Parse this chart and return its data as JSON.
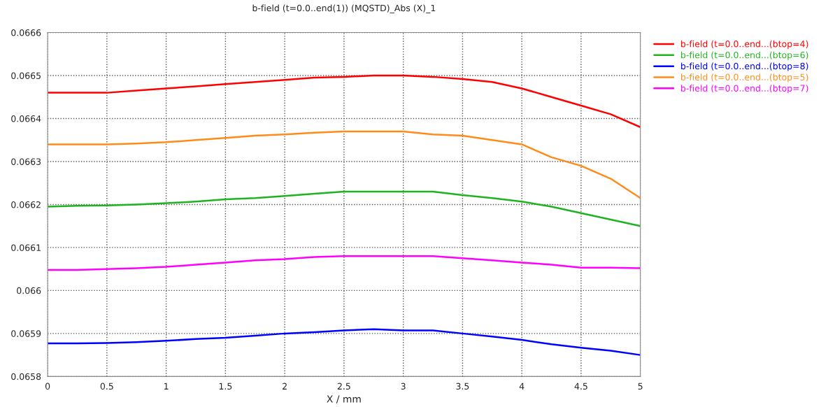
{
  "chart_data": {
    "type": "line",
    "title": "b-field (t=0.0..end(1)) (MQSTD)_Abs (X)_1",
    "xlabel": "X / mm",
    "x": [
      0,
      0.25,
      0.5,
      0.75,
      1,
      1.25,
      1.5,
      1.75,
      2,
      2.25,
      2.5,
      2.75,
      3,
      3.25,
      3.5,
      3.75,
      4,
      4.25,
      4.5,
      4.75,
      5
    ],
    "series": [
      {
        "name": "b-field (t=0.0..end...(btop=4)",
        "color": "#ff0000",
        "values": [
          0.06646,
          0.06646,
          0.06646,
          0.066465,
          0.06647,
          0.066475,
          0.06648,
          0.066485,
          0.06649,
          0.066495,
          0.066497,
          0.0665,
          0.0665,
          0.066497,
          0.066492,
          0.066485,
          0.06647,
          0.06645,
          0.06643,
          0.06641,
          0.06638
        ]
      },
      {
        "name": "b-field (t=0.0..end...(btop=6)",
        "color": "#1fb31f",
        "values": [
          0.066195,
          0.066197,
          0.066198,
          0.0662,
          0.066203,
          0.066207,
          0.066212,
          0.066215,
          0.06622,
          0.066225,
          0.06623,
          0.06623,
          0.06623,
          0.06623,
          0.066222,
          0.066215,
          0.066207,
          0.066195,
          0.06618,
          0.066165,
          0.06615
        ]
      },
      {
        "name": "b-field (t=0.0..end...(btop=8)",
        "color": "#0000ff",
        "values": [
          0.065877,
          0.065877,
          0.065878,
          0.06588,
          0.065883,
          0.065887,
          0.06589,
          0.065895,
          0.0659,
          0.065903,
          0.065907,
          0.06591,
          0.065907,
          0.065907,
          0.0659,
          0.065893,
          0.065885,
          0.065875,
          0.065867,
          0.06586,
          0.06585
        ]
      },
      {
        "name": "b-field (t=0.0..end...(btop=5)",
        "color": "#ff8c1a",
        "values": [
          0.06634,
          0.06634,
          0.06634,
          0.066342,
          0.066345,
          0.06635,
          0.066355,
          0.06636,
          0.066363,
          0.066367,
          0.06637,
          0.06637,
          0.06637,
          0.066363,
          0.06636,
          0.06635,
          0.06634,
          0.06631,
          0.06629,
          0.06626,
          0.066215
        ]
      },
      {
        "name": "b-field (t=0.0..end...(btop=7)",
        "color": "#ff00ff",
        "values": [
          0.066048,
          0.066048,
          0.06605,
          0.066052,
          0.066055,
          0.06606,
          0.066065,
          0.06607,
          0.066073,
          0.066078,
          0.06608,
          0.06608,
          0.06608,
          0.06608,
          0.066075,
          0.06607,
          0.066065,
          0.06606,
          0.066053,
          0.066053,
          0.066052
        ]
      }
    ],
    "xlim": [
      0,
      5
    ],
    "xticks": [
      0,
      0.5,
      1,
      1.5,
      2,
      2.5,
      3,
      3.5,
      4,
      4.5,
      5
    ],
    "ylim": [
      0.0658,
      0.0666
    ],
    "yticks": [
      0.0658,
      0.0659,
      0.066,
      0.0661,
      0.0662,
      0.0663,
      0.0664,
      0.0665,
      0.0666
    ],
    "grid": true,
    "legend": "top right",
    "line_style": "solid",
    "marker": "none"
  }
}
